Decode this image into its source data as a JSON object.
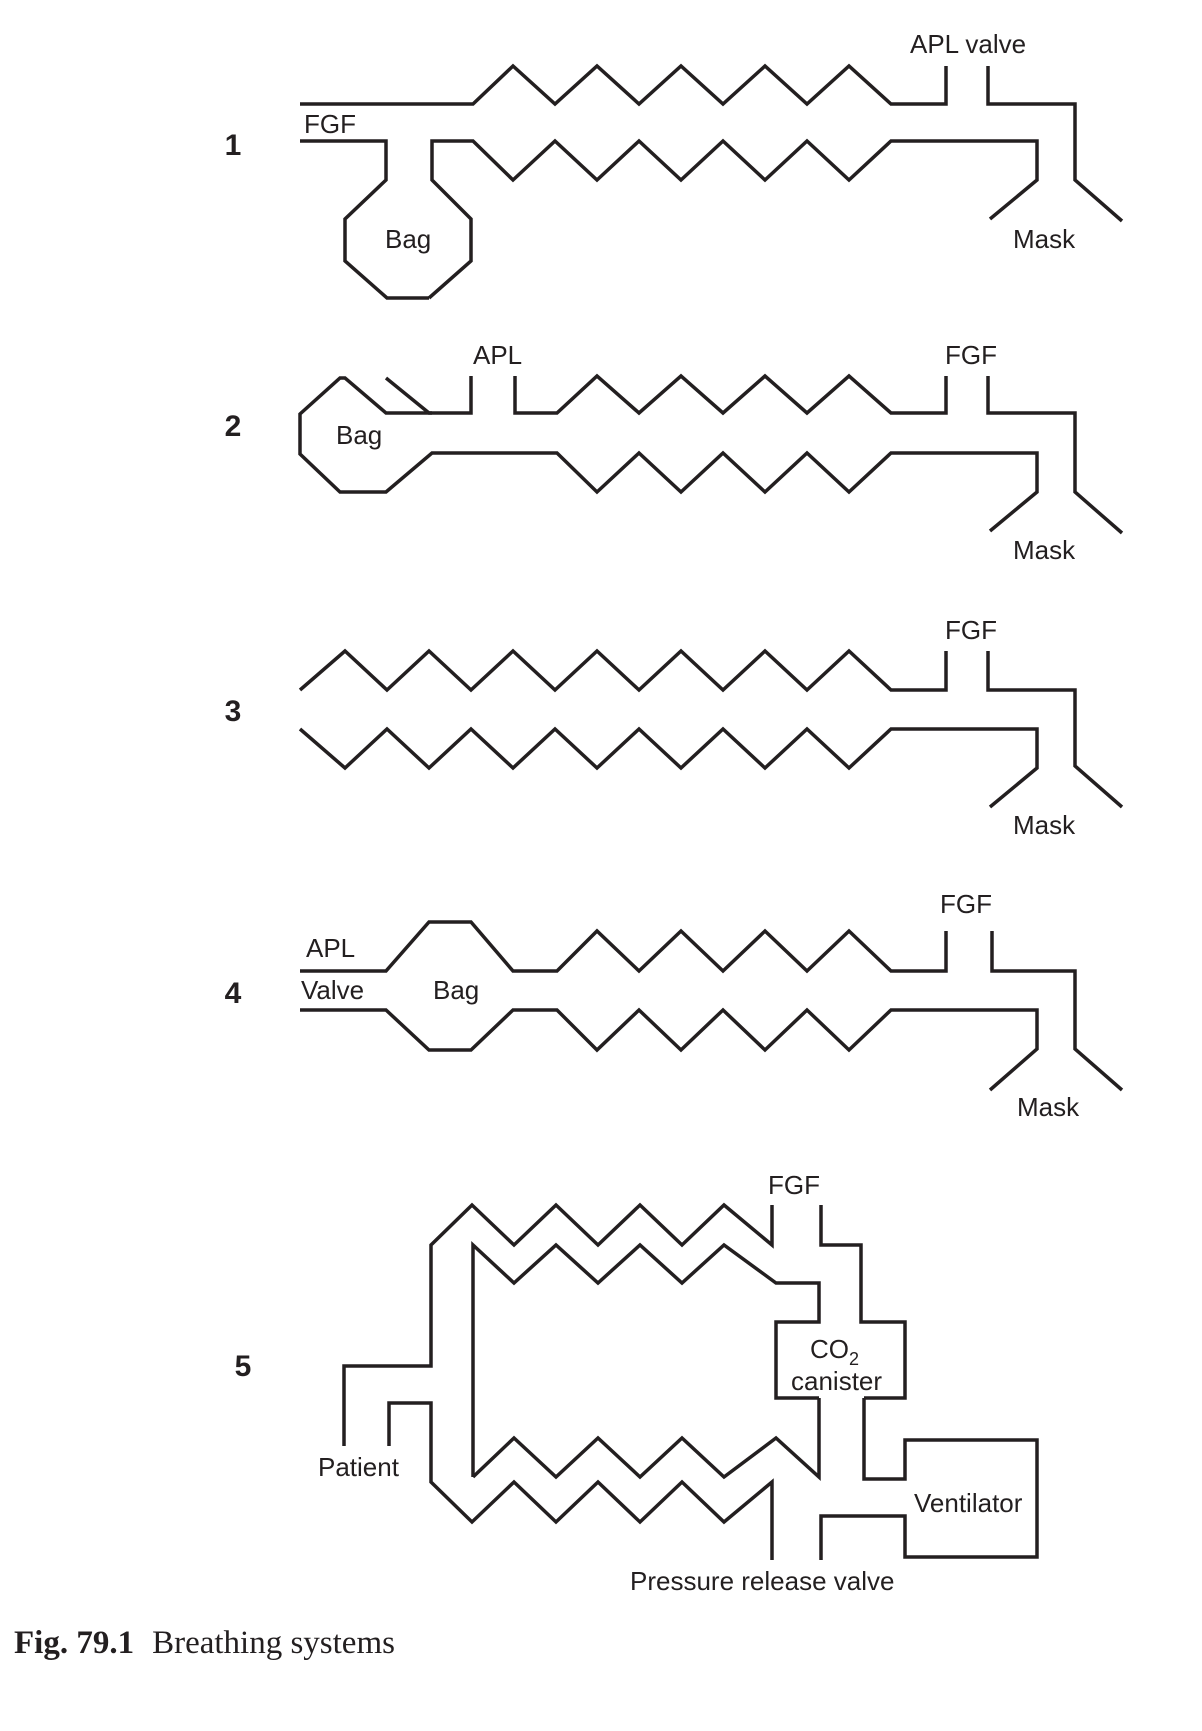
{
  "figure": {
    "number": "Fig. 79.1",
    "title": "Breathing systems"
  },
  "systems": [
    {
      "number": "1",
      "labels": {
        "fgf": "FGF",
        "apl": "APL valve",
        "bag": "Bag",
        "mask": "Mask"
      }
    },
    {
      "number": "2",
      "labels": {
        "apl": "APL",
        "fgf": "FGF",
        "bag": "Bag",
        "mask": "Mask"
      }
    },
    {
      "number": "3",
      "labels": {
        "fgf": "FGF",
        "mask": "Mask"
      }
    },
    {
      "number": "4",
      "labels": {
        "apl": "APL",
        "valve": "Valve",
        "bag": "Bag",
        "fgf": "FGF",
        "mask": "Mask"
      }
    },
    {
      "number": "5",
      "labels": {
        "fgf": "FGF",
        "co2_main": "CO",
        "co2_sub": "2",
        "canister": "canister",
        "patient": "Patient",
        "ventilator": "Ventilator",
        "prv": "Pressure release valve"
      }
    }
  ]
}
